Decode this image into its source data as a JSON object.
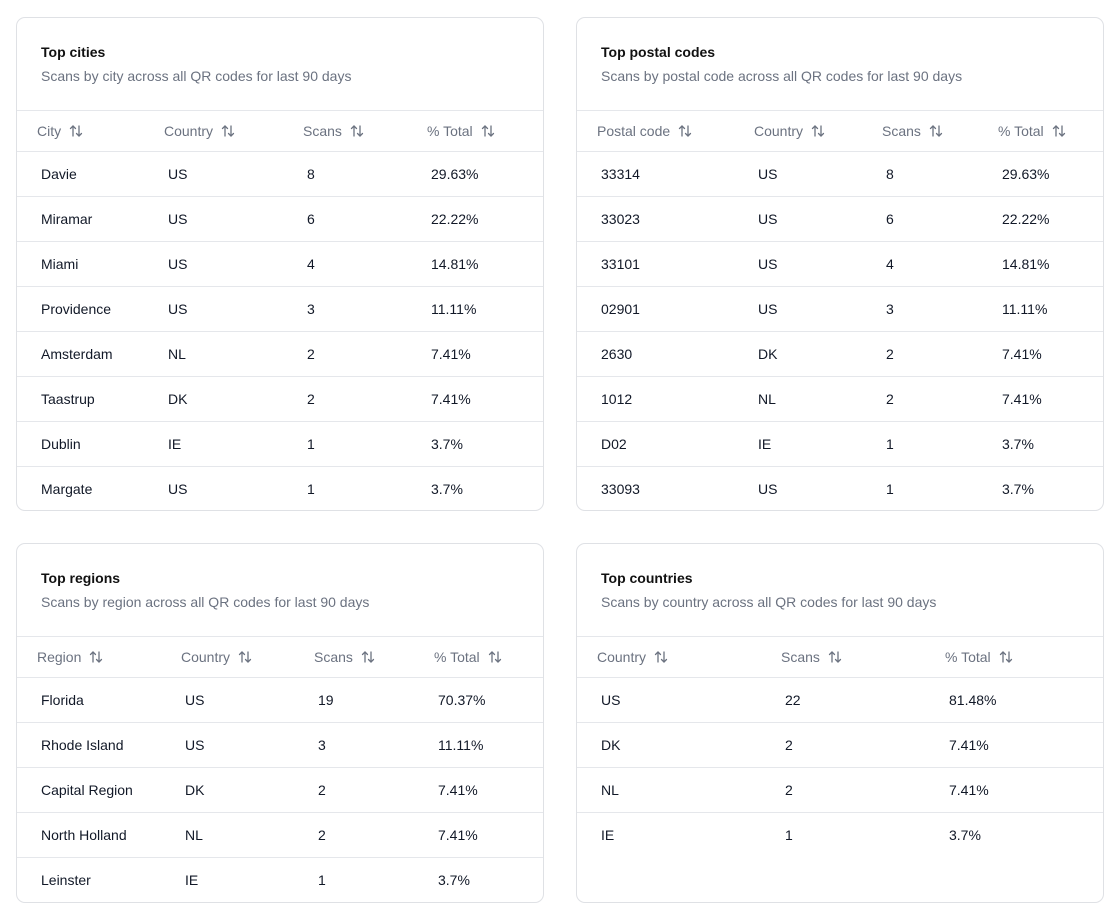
{
  "cards": {
    "cities": {
      "title": "Top cities",
      "description": "Scans by city across all QR codes for last 90 days",
      "columns": [
        "City",
        "Country",
        "Scans",
        "% Total"
      ],
      "rows": [
        [
          "Davie",
          "US",
          "8",
          "29.63%"
        ],
        [
          "Miramar",
          "US",
          "6",
          "22.22%"
        ],
        [
          "Miami",
          "US",
          "4",
          "14.81%"
        ],
        [
          "Providence",
          "US",
          "3",
          "11.11%"
        ],
        [
          "Amsterdam",
          "NL",
          "2",
          "7.41%"
        ],
        [
          "Taastrup",
          "DK",
          "2",
          "7.41%"
        ],
        [
          "Dublin",
          "IE",
          "1",
          "3.7%"
        ],
        [
          "Margate",
          "US",
          "1",
          "3.7%"
        ]
      ]
    },
    "postal": {
      "title": "Top postal codes",
      "description": "Scans by postal code across all QR codes for last 90 days",
      "columns": [
        "Postal code",
        "Country",
        "Scans",
        "% Total"
      ],
      "rows": [
        [
          "33314",
          "US",
          "8",
          "29.63%"
        ],
        [
          "33023",
          "US",
          "6",
          "22.22%"
        ],
        [
          "33101",
          "US",
          "4",
          "14.81%"
        ],
        [
          "02901",
          "US",
          "3",
          "11.11%"
        ],
        [
          "2630",
          "DK",
          "2",
          "7.41%"
        ],
        [
          "1012",
          "NL",
          "2",
          "7.41%"
        ],
        [
          "D02",
          "IE",
          "1",
          "3.7%"
        ],
        [
          "33093",
          "US",
          "1",
          "3.7%"
        ]
      ]
    },
    "regions": {
      "title": "Top regions",
      "description": "Scans by region across all QR codes for last 90 days",
      "columns": [
        "Region",
        "Country",
        "Scans",
        "% Total"
      ],
      "rows": [
        [
          "Florida",
          "US",
          "19",
          "70.37%"
        ],
        [
          "Rhode Island",
          "US",
          "3",
          "11.11%"
        ],
        [
          "Capital Region",
          "DK",
          "2",
          "7.41%"
        ],
        [
          "North Holland",
          "NL",
          "2",
          "7.41%"
        ],
        [
          "Leinster",
          "IE",
          "1",
          "3.7%"
        ]
      ]
    },
    "countries": {
      "title": "Top countries",
      "description": "Scans by country across all QR codes for last 90 days",
      "columns": [
        "Country",
        "Scans",
        "% Total"
      ],
      "rows": [
        [
          "US",
          "22",
          "81.48%"
        ],
        [
          "DK",
          "2",
          "7.41%"
        ],
        [
          "NL",
          "2",
          "7.41%"
        ],
        [
          "IE",
          "1",
          "3.7%"
        ]
      ]
    }
  },
  "icons": {
    "sort": "sort-arrows-icon"
  },
  "colors": {
    "border": "#e5e7eb",
    "muted_text": "#6b7280",
    "title_text": "#111111"
  }
}
